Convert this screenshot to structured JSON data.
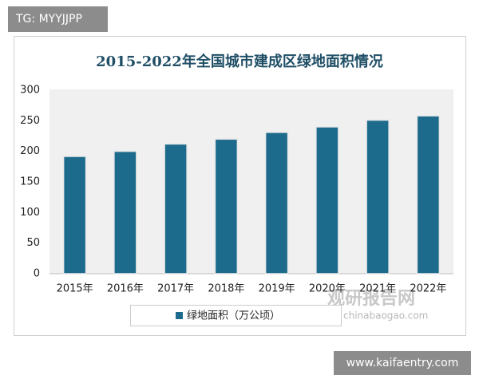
{
  "tag": "TG: MYYJJPP",
  "footer_url": "www.kaifaentry.com",
  "watermark": {
    "name": "观研报告网",
    "url": "chinabaogao.com"
  },
  "chart_data": {
    "type": "bar",
    "title": "2015-2022年全国城市建成区绿地面积情况",
    "categories": [
      "2015年",
      "2016年",
      "2017年",
      "2018年",
      "2019年",
      "2020年",
      "2021年",
      "2022年"
    ],
    "series": [
      {
        "name": "绿地面积（万公顷）",
        "color": "#1d6b8c",
        "values": [
          191.7,
          200.0,
          212.0,
          220.0,
          231.0,
          240.0,
          251.0,
          258.0
        ]
      }
    ],
    "ylim": [
      0,
      300
    ],
    "yticks": [
      0,
      50,
      100,
      150,
      200,
      250,
      300
    ],
    "grid": false
  }
}
